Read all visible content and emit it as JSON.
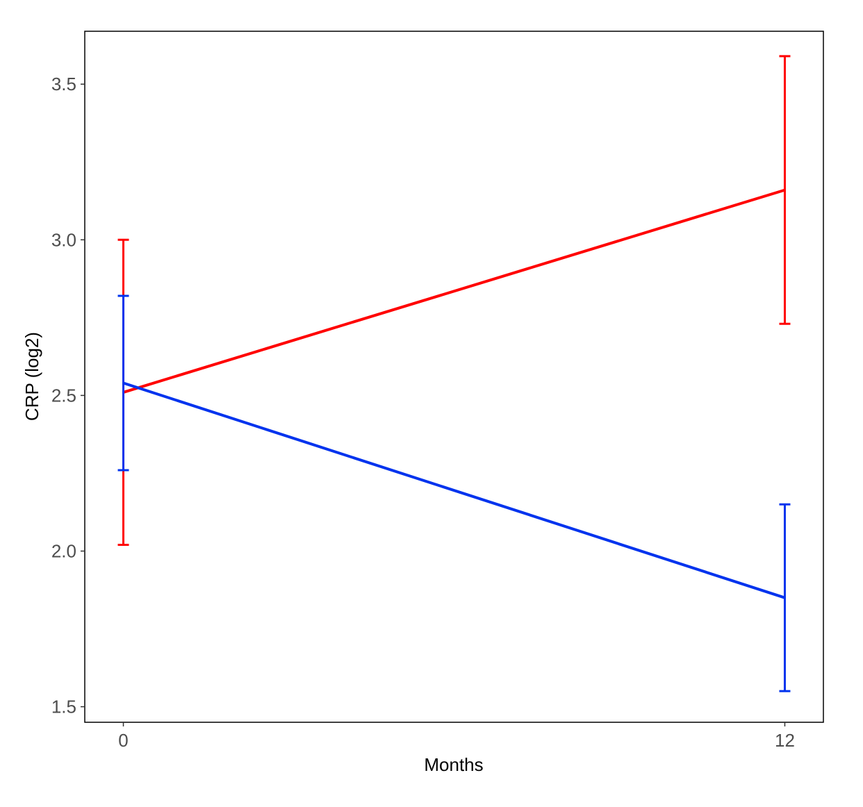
{
  "chart_data": {
    "type": "line",
    "title": "",
    "xlabel": "Months",
    "ylabel": "CRP (log2)",
    "x": [
      0,
      12
    ],
    "x_ticks": [
      "0",
      "12"
    ],
    "y_ticks": [
      "1.5",
      "2.0",
      "2.5",
      "3.0",
      "3.5"
    ],
    "xlim": [
      -0.7,
      12.7
    ],
    "ylim": [
      1.45,
      3.67
    ],
    "grid": false,
    "legend": "none",
    "series": [
      {
        "color": "#ff0000",
        "values": [
          2.51,
          3.16
        ],
        "error_low": [
          2.02,
          2.73
        ],
        "error_high": [
          3.0,
          3.59
        ]
      },
      {
        "color": "#0033ee",
        "values": [
          2.54,
          1.85
        ],
        "error_low": [
          2.26,
          1.55
        ],
        "error_high": [
          2.82,
          2.15
        ]
      }
    ]
  }
}
